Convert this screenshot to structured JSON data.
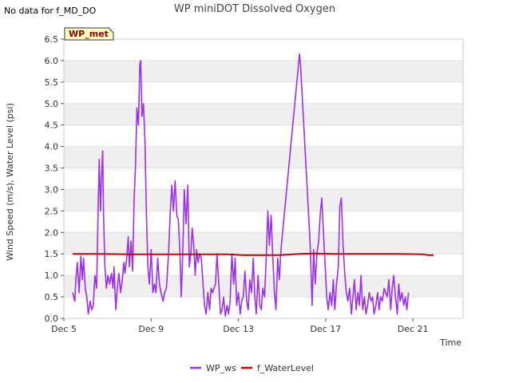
{
  "note": "No data for f_MD_DO",
  "chart_data": {
    "type": "line",
    "title": "WP miniDOT Dissolved Oxygen",
    "xlabel": "Time",
    "ylabel": "Wind Speed (m/s), Water Level (psi)",
    "badge": "WP_met",
    "ylim": [
      0.0,
      6.5
    ],
    "yticks": [
      "0.0",
      "0.5",
      "1.0",
      "1.5",
      "2.0",
      "2.5",
      "3.0",
      "3.5",
      "4.0",
      "4.5",
      "5.0",
      "5.5",
      "6.0",
      "6.5"
    ],
    "xlim": [
      "Dec 5",
      "Dec 23.3"
    ],
    "xticks": [
      {
        "day": 5,
        "label": "Dec 5"
      },
      {
        "day": 9,
        "label": "Dec 9"
      },
      {
        "day": 13,
        "label": "Dec 13"
      },
      {
        "day": 17,
        "label": "Dec 17"
      },
      {
        "day": 21,
        "label": "Dec 21"
      }
    ],
    "legend_position": "bottom-center",
    "grid": "horizontal alternating bands",
    "series": [
      {
        "name": "WP_ws",
        "color": "#9b30e8",
        "points": [
          [
            5.4,
            0.6
          ],
          [
            5.5,
            0.4
          ],
          [
            5.55,
            0.9
          ],
          [
            5.62,
            1.3
          ],
          [
            5.7,
            0.6
          ],
          [
            5.78,
            1.45
          ],
          [
            5.85,
            0.9
          ],
          [
            5.9,
            1.4
          ],
          [
            5.98,
            0.7
          ],
          [
            6.05,
            0.5
          ],
          [
            6.12,
            0.1
          ],
          [
            6.2,
            0.4
          ],
          [
            6.28,
            0.2
          ],
          [
            6.35,
            0.3
          ],
          [
            6.42,
            1.0
          ],
          [
            6.5,
            0.7
          ],
          [
            6.58,
            2.8
          ],
          [
            6.62,
            3.7
          ],
          [
            6.68,
            2.5
          ],
          [
            6.72,
            3.2
          ],
          [
            6.78,
            3.9
          ],
          [
            6.82,
            2.4
          ],
          [
            6.88,
            1.2
          ],
          [
            6.95,
            0.7
          ],
          [
            7.02,
            1.0
          ],
          [
            7.1,
            0.8
          ],
          [
            7.18,
            1.05
          ],
          [
            7.25,
            0.7
          ],
          [
            7.3,
            1.2
          ],
          [
            7.38,
            0.2
          ],
          [
            7.45,
            0.7
          ],
          [
            7.52,
            1.05
          ],
          [
            7.6,
            0.6
          ],
          [
            7.68,
            0.9
          ],
          [
            7.75,
            1.3
          ],
          [
            7.8,
            1.05
          ],
          [
            7.88,
            1.4
          ],
          [
            7.95,
            1.9
          ],
          [
            8.0,
            1.2
          ],
          [
            8.08,
            1.8
          ],
          [
            8.15,
            1.1
          ],
          [
            8.22,
            2.8
          ],
          [
            8.28,
            3.5
          ],
          [
            8.35,
            4.9
          ],
          [
            8.42,
            4.5
          ],
          [
            8.48,
            5.9
          ],
          [
            8.52,
            6.0
          ],
          [
            8.58,
            4.7
          ],
          [
            8.65,
            5.0
          ],
          [
            8.72,
            4.1
          ],
          [
            8.78,
            2.5
          ],
          [
            8.85,
            1.2
          ],
          [
            8.92,
            0.8
          ],
          [
            9.0,
            1.6
          ],
          [
            9.08,
            0.6
          ],
          [
            9.15,
            0.8
          ],
          [
            9.22,
            0.6
          ],
          [
            9.3,
            1.4
          ],
          [
            9.38,
            0.8
          ],
          [
            9.45,
            0.6
          ],
          [
            9.55,
            0.4
          ],
          [
            9.62,
            0.6
          ],
          [
            9.7,
            0.7
          ],
          [
            9.8,
            1.5
          ],
          [
            9.88,
            2.5
          ],
          [
            9.95,
            3.1
          ],
          [
            10.02,
            2.5
          ],
          [
            10.1,
            3.2
          ],
          [
            10.18,
            2.4
          ],
          [
            10.25,
            2.3
          ],
          [
            10.32,
            1.5
          ],
          [
            10.38,
            0.5
          ],
          [
            10.45,
            1.5
          ],
          [
            10.52,
            3.0
          ],
          [
            10.6,
            2.2
          ],
          [
            10.68,
            3.1
          ],
          [
            10.75,
            1.2
          ],
          [
            10.82,
            1.5
          ],
          [
            10.88,
            2.1
          ],
          [
            10.95,
            1.7
          ],
          [
            11.02,
            1.0
          ],
          [
            11.08,
            1.6
          ],
          [
            11.15,
            1.3
          ],
          [
            11.22,
            1.5
          ],
          [
            11.3,
            1.4
          ],
          [
            11.38,
            0.8
          ],
          [
            11.45,
            0.3
          ],
          [
            11.52,
            0.1
          ],
          [
            11.6,
            0.6
          ],
          [
            11.68,
            0.2
          ],
          [
            11.75,
            0.7
          ],
          [
            11.82,
            0.6
          ],
          [
            11.88,
            0.7
          ],
          [
            11.95,
            0.8
          ],
          [
            12.02,
            1.5
          ],
          [
            12.1,
            0.8
          ],
          [
            12.18,
            0.1
          ],
          [
            12.25,
            0.2
          ],
          [
            12.32,
            0.5
          ],
          [
            12.4,
            0.05
          ],
          [
            12.48,
            0.3
          ],
          [
            12.55,
            0.1
          ],
          [
            12.62,
            0.4
          ],
          [
            12.7,
            1.5
          ],
          [
            12.78,
            0.8
          ],
          [
            12.85,
            1.4
          ],
          [
            12.92,
            0.3
          ],
          [
            13.0,
            0.6
          ],
          [
            13.08,
            0.1
          ],
          [
            13.15,
            0.4
          ],
          [
            13.22,
            0.5
          ],
          [
            13.3,
            1.1
          ],
          [
            13.38,
            0.4
          ],
          [
            13.45,
            0.2
          ],
          [
            13.52,
            0.9
          ],
          [
            13.6,
            0.6
          ],
          [
            13.68,
            1.4
          ],
          [
            13.75,
            0.5
          ],
          [
            13.82,
            0.1
          ],
          [
            13.9,
            1.0
          ],
          [
            13.98,
            0.3
          ],
          [
            14.05,
            0.2
          ],
          [
            14.12,
            0.7
          ],
          [
            14.2,
            0.5
          ],
          [
            14.28,
            1.5
          ],
          [
            14.35,
            2.5
          ],
          [
            14.42,
            1.7
          ],
          [
            14.5,
            2.4
          ],
          [
            14.58,
            1.4
          ],
          [
            14.65,
            0.6
          ],
          [
            14.72,
            0.2
          ],
          [
            14.8,
            1.4
          ],
          [
            14.88,
            0.9
          ],
          [
            14.95,
            1.6
          ],
          [
            15.8,
            6.15
          ],
          [
            15.85,
            5.9
          ],
          [
            16.25,
            2.1
          ],
          [
            16.3,
            1.6
          ],
          [
            16.38,
            0.3
          ],
          [
            16.45,
            1.6
          ],
          [
            16.52,
            0.8
          ],
          [
            16.6,
            1.5
          ],
          [
            16.68,
            1.8
          ],
          [
            16.75,
            2.4
          ],
          [
            16.82,
            2.8
          ],
          [
            16.9,
            2.0
          ],
          [
            16.98,
            1.2
          ],
          [
            17.05,
            0.5
          ],
          [
            17.12,
            0.2
          ],
          [
            17.2,
            0.6
          ],
          [
            17.28,
            0.3
          ],
          [
            17.35,
            0.9
          ],
          [
            17.42,
            0.2
          ],
          [
            17.5,
            0.8
          ],
          [
            17.58,
            1.2
          ],
          [
            17.65,
            2.6
          ],
          [
            17.72,
            2.8
          ],
          [
            17.8,
            1.7
          ],
          [
            17.88,
            1.0
          ],
          [
            17.95,
            0.6
          ],
          [
            18.02,
            0.4
          ],
          [
            18.1,
            0.7
          ],
          [
            18.18,
            0.1
          ],
          [
            18.25,
            0.5
          ],
          [
            18.32,
            0.9
          ],
          [
            18.4,
            0.2
          ],
          [
            18.48,
            0.6
          ],
          [
            18.55,
            0.3
          ],
          [
            18.62,
            1.0
          ],
          [
            18.7,
            0.2
          ],
          [
            18.78,
            0.5
          ],
          [
            18.85,
            0.1
          ],
          [
            18.92,
            0.3
          ],
          [
            19.0,
            0.6
          ],
          [
            19.08,
            0.4
          ],
          [
            19.15,
            0.5
          ],
          [
            19.22,
            0.1
          ],
          [
            19.3,
            0.3
          ],
          [
            19.38,
            0.6
          ],
          [
            19.45,
            0.2
          ],
          [
            19.52,
            0.5
          ],
          [
            19.6,
            0.4
          ],
          [
            19.68,
            0.7
          ],
          [
            19.75,
            0.6
          ],
          [
            19.82,
            0.5
          ],
          [
            19.9,
            0.9
          ],
          [
            19.98,
            0.2
          ],
          [
            20.05,
            0.7
          ],
          [
            20.12,
            1.0
          ],
          [
            20.2,
            0.5
          ],
          [
            20.28,
            0.1
          ],
          [
            20.35,
            0.8
          ],
          [
            20.42,
            0.4
          ],
          [
            20.5,
            0.6
          ],
          [
            20.58,
            0.3
          ],
          [
            20.65,
            0.5
          ],
          [
            20.72,
            0.2
          ],
          [
            20.8,
            0.6
          ]
        ]
      },
      {
        "name": "f_WaterLevel",
        "color": "#cc0000",
        "points": [
          [
            5.4,
            1.5
          ],
          [
            6.5,
            1.5
          ],
          [
            8.0,
            1.49
          ],
          [
            9.5,
            1.49
          ],
          [
            11.0,
            1.49
          ],
          [
            12.5,
            1.49
          ],
          [
            13.2,
            1.47
          ],
          [
            14.2,
            1.47
          ],
          [
            14.9,
            1.47
          ],
          [
            15.8,
            1.5
          ],
          [
            16.5,
            1.51
          ],
          [
            17.5,
            1.5
          ],
          [
            19.0,
            1.5
          ],
          [
            20.3,
            1.5
          ],
          [
            21.5,
            1.49
          ],
          [
            21.7,
            1.47
          ],
          [
            21.95,
            1.47
          ]
        ]
      }
    ]
  }
}
